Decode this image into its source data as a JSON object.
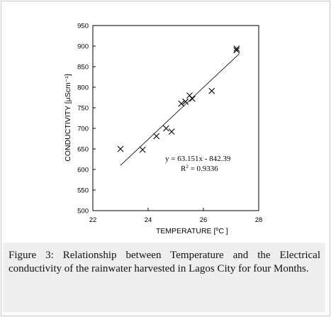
{
  "chart_data": {
    "type": "scatter",
    "xlabel_prefix": "TEMPERATURE [",
    "xlabel_unit": "o",
    "xlabel_suffix": "C ]",
    "ylabel": "CONDUCTIVITY [µScm⁻¹]",
    "xlim": [
      22,
      28
    ],
    "ylim": [
      500,
      950
    ],
    "x_ticks": [
      22,
      24,
      26,
      28
    ],
    "y_ticks": [
      500,
      550,
      600,
      650,
      700,
      750,
      800,
      850,
      900,
      950
    ],
    "marker": "x",
    "grid": false,
    "points": [
      {
        "x": 23.0,
        "y": 650
      },
      {
        "x": 23.8,
        "y": 648
      },
      {
        "x": 24.3,
        "y": 681
      },
      {
        "x": 24.65,
        "y": 700
      },
      {
        "x": 24.85,
        "y": 692
      },
      {
        "x": 25.2,
        "y": 760
      },
      {
        "x": 25.35,
        "y": 765
      },
      {
        "x": 25.5,
        "y": 780
      },
      {
        "x": 25.6,
        "y": 772
      },
      {
        "x": 26.3,
        "y": 791
      },
      {
        "x": 27.2,
        "y": 890
      },
      {
        "x": 27.2,
        "y": 894
      }
    ],
    "trendline": {
      "slope": 63.151,
      "intercept": -842.39,
      "x_range": [
        23.0,
        27.3
      ]
    },
    "equation_text": "y = 63.151x - 842.39",
    "r2_label": "R",
    "r2_sup": "2",
    "r2_value": " = 0.9336"
  },
  "caption": {
    "label": "Figure 3",
    "text": ": Relationship between Temperature and the Electrical conductivity of the rainwater harvested in Lagos City for four Months."
  },
  "colors": {
    "marker": "#000000",
    "trendline": "#000000",
    "caption_bg": "#efefef"
  }
}
